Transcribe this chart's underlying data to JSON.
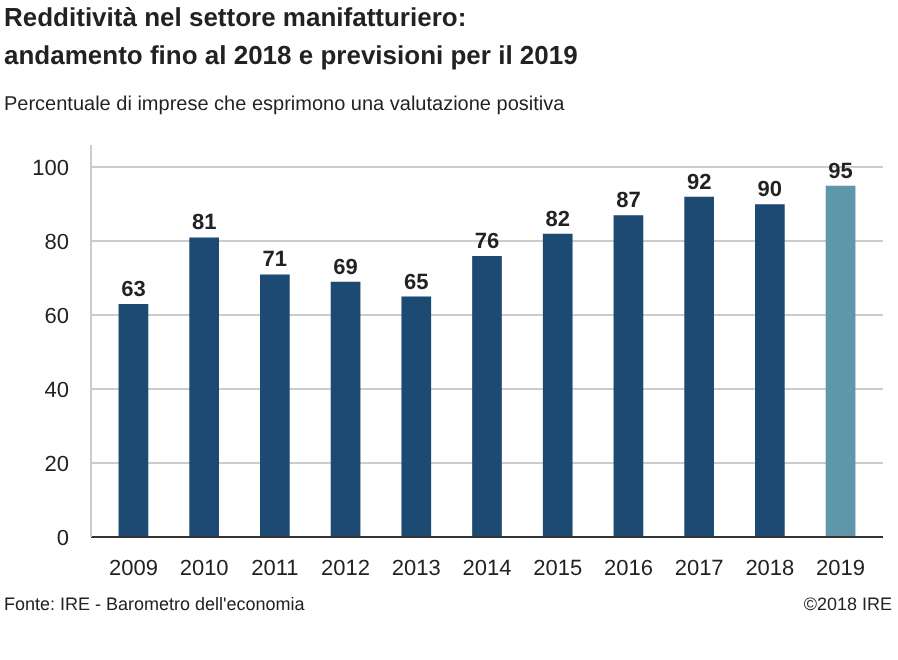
{
  "chart_data": {
    "type": "bar",
    "title": "Redditività nel settore manifatturiero:\nandamento fino al 2018 e previsioni per il 2019",
    "subtitle": "Percentuale di imprese che esprimono una valutazione positiva",
    "categories": [
      "2009",
      "2010",
      "2011",
      "2012",
      "2013",
      "2014",
      "2015",
      "2016",
      "2017",
      "2018",
      "2019"
    ],
    "values": [
      63,
      81,
      71,
      69,
      65,
      76,
      82,
      87,
      92,
      90,
      95
    ],
    "colors": [
      "#1d4a72",
      "#1d4a72",
      "#1d4a72",
      "#1d4a72",
      "#1d4a72",
      "#1d4a72",
      "#1d4a72",
      "#1d4a72",
      "#1d4a72",
      "#1d4a72",
      "#5f96aa"
    ],
    "ylim": [
      0,
      106
    ],
    "yticks": [
      0,
      20,
      40,
      60,
      80,
      100
    ],
    "grid": "y",
    "data_labels": true,
    "annotations": [
      "Fonte: IRE - Barometro dell'economia",
      "©2018 IRE"
    ]
  }
}
